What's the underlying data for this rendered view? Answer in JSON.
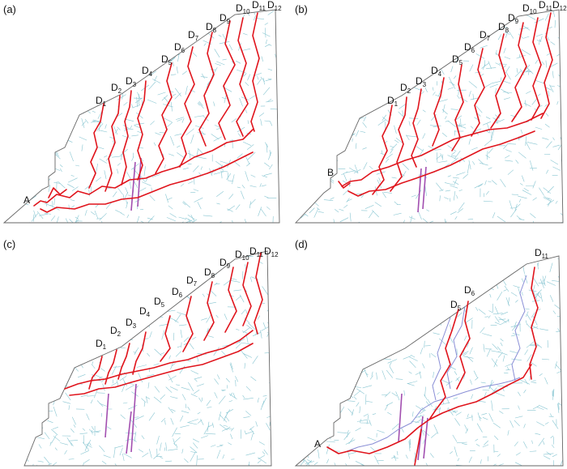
{
  "figure": {
    "colors": {
      "slope_outline": "#666666",
      "joint_network": "#88c6d2",
      "failure_path": "#e0141c",
      "secondary_path": "#8a8fd6",
      "reinforcement": "#a24fb0"
    },
    "panels": [
      {
        "tag": "(a)",
        "point_label": "A",
        "d_labels": [
          {
            "main": "D",
            "sub": "1"
          },
          {
            "main": "D",
            "sub": "2"
          },
          {
            "main": "D",
            "sub": "3"
          },
          {
            "main": "D",
            "sub": "4"
          },
          {
            "main": "D",
            "sub": "5"
          },
          {
            "main": "D",
            "sub": "6"
          },
          {
            "main": "D",
            "sub": "7"
          },
          {
            "main": "D",
            "sub": "8"
          },
          {
            "main": "D",
            "sub": "9"
          },
          {
            "main": "D",
            "sub": "10"
          },
          {
            "main": "D",
            "sub": "11"
          },
          {
            "main": "D",
            "sub": "12"
          }
        ]
      },
      {
        "tag": "(b)",
        "point_label": "B",
        "d_labels": [
          {
            "main": "D",
            "sub": "1"
          },
          {
            "main": "D",
            "sub": "2"
          },
          {
            "main": "D",
            "sub": "3"
          },
          {
            "main": "D",
            "sub": "4"
          },
          {
            "main": "D",
            "sub": "5"
          },
          {
            "main": "D",
            "sub": "6"
          },
          {
            "main": "D",
            "sub": "7"
          },
          {
            "main": "D",
            "sub": "8"
          },
          {
            "main": "D",
            "sub": "9"
          },
          {
            "main": "D",
            "sub": "10"
          },
          {
            "main": "D",
            "sub": "11"
          },
          {
            "main": "D",
            "sub": "12"
          }
        ]
      },
      {
        "tag": "(c)",
        "point_label": "",
        "d_labels": [
          {
            "main": "D",
            "sub": "1"
          },
          {
            "main": "D",
            "sub": "2"
          },
          {
            "main": "D",
            "sub": "3"
          },
          {
            "main": "D",
            "sub": "4"
          },
          {
            "main": "D",
            "sub": "5"
          },
          {
            "main": "D",
            "sub": "6"
          },
          {
            "main": "D",
            "sub": "7"
          },
          {
            "main": "D",
            "sub": "8"
          },
          {
            "main": "D",
            "sub": "9"
          },
          {
            "main": "D",
            "sub": "10"
          },
          {
            "main": "D",
            "sub": "11"
          },
          {
            "main": "D",
            "sub": "12"
          }
        ]
      },
      {
        "tag": "(d)",
        "point_label": "A",
        "d_labels": [
          {
            "main": "D",
            "sub": "5"
          },
          {
            "main": "D",
            "sub": "6"
          },
          {
            "main": "D",
            "sub": "11"
          }
        ]
      }
    ]
  }
}
